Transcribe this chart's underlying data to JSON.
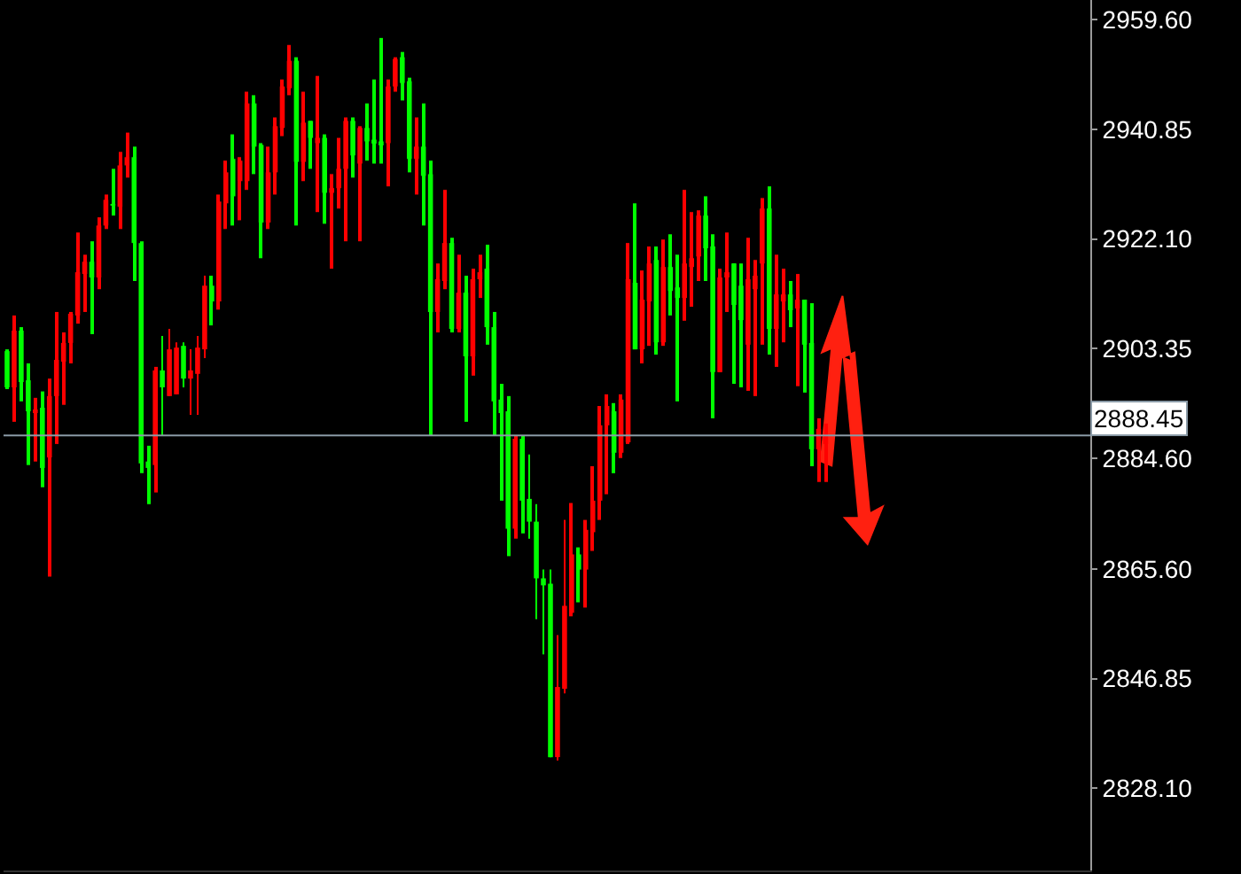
{
  "chart_data": {
    "type": "candlestick",
    "categories": [
      null,
      null,
      null,
      null,
      null,
      null,
      null,
      null,
      null,
      null,
      null,
      null,
      null,
      null,
      null,
      null,
      null,
      null,
      null,
      null,
      null,
      null,
      null,
      null,
      null,
      null,
      null,
      null,
      null,
      null,
      null,
      null,
      null,
      null,
      null,
      null,
      null,
      null,
      null,
      null,
      null,
      null,
      null,
      null,
      null,
      null,
      null,
      null,
      null,
      null,
      null,
      null,
      null,
      null,
      null,
      null,
      null,
      null,
      null,
      null,
      null,
      null,
      null,
      null,
      null,
      null,
      null,
      null,
      null,
      null,
      null,
      null,
      null,
      null,
      null,
      null,
      null,
      null,
      null,
      null,
      null,
      null,
      null,
      null,
      null,
      null,
      null,
      null,
      null,
      null,
      null,
      null,
      null,
      null,
      null,
      null,
      null,
      null,
      null,
      null,
      null,
      null,
      null,
      null,
      null,
      null,
      null,
      null,
      null,
      null,
      null,
      null,
      null,
      null,
      null,
      null,
      null,
      null,
      null,
      null,
      null,
      null,
      null,
      null,
      null,
      null,
      null,
      null,
      null,
      null,
      null,
      null,
      null,
      null,
      null,
      null,
      null,
      null,
      null,
      null,
      null,
      null,
      null,
      null,
      null,
      null,
      null,
      null,
      null,
      null,
      null,
      null,
      null,
      null
    ],
    "series": [
      {
        "colors": [
          "#00ff00",
          "#ff0000",
          "#00ff00",
          "#00ff00",
          "#ff0000",
          "#00ff00",
          "#ff0000",
          "#ff0000",
          "#ff0000",
          "#ff0000",
          "#ff0000",
          "#ff0000",
          "#00ff00",
          "#ff0000",
          "#ff0000",
          "#00ff00",
          "#ff0000",
          "#ff0000",
          "#00ff00",
          "#00ff00",
          "#00ff00",
          "#ff0000",
          "#00ff00",
          "#ff0000",
          "#ff0000",
          "#00ff00",
          "#ff0000",
          "#ff0000",
          "#ff0000",
          "#00ff00",
          "#ff0000",
          "#ff0000",
          "#00ff00",
          "#ff0000",
          "#ff0000",
          "#00ff00",
          "#00ff00",
          "#ff0000",
          "#ff0000",
          "#ff0000",
          "#ff0000",
          "#00ff00",
          "#ff0000",
          "#00ff00",
          "#ff0000",
          "#00ff00",
          "#ff0000",
          "#ff0000",
          "#ff0000",
          "#00ff00",
          "#ff0000",
          "#00ff00",
          "#00ff00",
          "#00ff00",
          "#ff0000",
          "#ff0000",
          "#00ff00",
          "#00ff00",
          "#ff0000",
          "#00ff00",
          "#00ff00",
          "#ff0000",
          "#ff0000",
          "#00ff00",
          "#ff0000",
          "#00ff00",
          "#ff0000",
          "#ff0000",
          "#00ff00",
          "#00ff00",
          "#00ff00",
          "#00ff00",
          "#ff0000",
          "#00ff00",
          "#00ff00",
          "#00ff00",
          "#00ff00",
          "#00ff00",
          "#ff0000",
          "#ff0000",
          "#ff0000",
          "#00ff00",
          "#ff0000",
          "#ff0000",
          "#ff0000",
          "#ff0000",
          "#00ff00",
          "#ff0000",
          "#ff0000",
          "#00ff00",
          "#ff0000",
          "#ff0000",
          "#00ff00",
          "#ff0000",
          "#00ff00",
          "#00ff00",
          "#ff0000",
          "#ff0000",
          "#ff0000",
          "#00ff00",
          "#00ff00",
          "#ff0000",
          "#ff0000",
          "#00ff00",
          "#00ff00",
          "#ff0000",
          "#ff0000",
          "#ff0000",
          "#00ff00",
          "#ff0000",
          "#ff0000",
          "#00ff00",
          "#ff0000",
          "#00ff00",
          "#00ff00",
          "#ff0000",
          "#ff0000",
          null,
          null,
          null,
          null,
          null,
          null,
          null,
          null,
          null,
          null,
          null,
          null,
          null,
          null,
          null,
          null,
          null,
          null,
          null,
          null,
          null,
          null,
          null,
          null,
          null,
          null,
          null,
          null,
          null,
          null,
          null,
          null,
          null,
          null,
          null,
          null,
          null
        ],
        "ohlc": [
          [
            2896.7,
            2903.2,
            2896.4,
            2902.9
          ],
          [
            2906.4,
            2909.0,
            2890.8,
            2896.7
          ],
          [
            2897.6,
            2907.0,
            2894.3,
            2906.4
          ],
          [
            2892.6,
            2900.8,
            2883.4,
            2897.9
          ],
          [
            2892.6,
            2894.9,
            2884.0,
            2892.3
          ],
          [
            2882.9,
            2896.0,
            2879.6,
            2893.2
          ],
          [
            2895.2,
            2898.2,
            2864.3,
            2884.7
          ],
          [
            2901.4,
            2909.6,
            2887.0,
            2895.2
          ],
          [
            2904.3,
            2906.1,
            2893.7,
            2901.1
          ],
          [
            2909.3,
            2909.6,
            2900.8,
            2904.3
          ],
          [
            2916.4,
            2923.2,
            2907.6,
            2909.0
          ],
          [
            2918.2,
            2919.4,
            2909.6,
            2916.1
          ],
          [
            2915.5,
            2921.7,
            2905.8,
            2918.2
          ],
          [
            2924.4,
            2925.8,
            2913.5,
            2915.5
          ],
          [
            2928.8,
            2929.7,
            2923.8,
            2924.4
          ],
          [
            2927.8,
            2934.1,
            2926.1,
            2928.1
          ],
          [
            2934.7,
            2937.0,
            2923.8,
            2927.6
          ],
          [
            2936.1,
            2940.3,
            2932.6,
            2934.7
          ],
          [
            2921.4,
            2937.9,
            2914.9,
            2936.1
          ],
          [
            2883.7,
            2921.7,
            2882.0,
            2921.4
          ],
          [
            2882.9,
            2886.7,
            2876.7,
            2884.0
          ],
          [
            2899.6,
            2900.2,
            2878.7,
            2883.4
          ],
          [
            2896.7,
            2905.5,
            2888.5,
            2899.6
          ],
          [
            2903.2,
            2906.7,
            2895.2,
            2895.2
          ],
          [
            2903.5,
            2904.4,
            2895.5,
            2895.5
          ],
          [
            2898.2,
            2904.4,
            2896.7,
            2903.8
          ],
          [
            2899.6,
            2903.2,
            2892.0,
            2898.2
          ],
          [
            2903.5,
            2905.5,
            2892.0,
            2899.0
          ],
          [
            2914.1,
            2915.8,
            2901.7,
            2903.2
          ],
          [
            2911.4,
            2915.8,
            2907.3,
            2914.1
          ],
          [
            2928.5,
            2929.7,
            2910.0,
            2911.4
          ],
          [
            2933.5,
            2935.5,
            2923.8,
            2928.2
          ],
          [
            2929.4,
            2940.0,
            2924.4,
            2935.8
          ],
          [
            2935.5,
            2936.1,
            2925.3,
            2932.0
          ],
          [
            2945.3,
            2947.3,
            2930.5,
            2932.0
          ],
          [
            2937.9,
            2946.7,
            2933.2,
            2945.3
          ],
          [
            2924.9,
            2938.5,
            2918.8,
            2938.2
          ],
          [
            2933.5,
            2937.9,
            2923.8,
            2924.9
          ],
          [
            2941.4,
            2942.9,
            2929.7,
            2933.5
          ],
          [
            2948.2,
            2949.4,
            2939.7,
            2941.1
          ],
          [
            2952.6,
            2955.3,
            2946.7,
            2947.9
          ],
          [
            2935.3,
            2953.2,
            2924.4,
            2952.6
          ],
          [
            2942.0,
            2947.3,
            2932.0,
            2935.3
          ],
          [
            2939.4,
            2942.3,
            2934.1,
            2942.3
          ],
          [
            2939.4,
            2950.0,
            2926.7,
            2938.5
          ],
          [
            2930.0,
            2940.0,
            2924.7,
            2939.4
          ],
          [
            2930.8,
            2933.2,
            2917.0,
            2930.0
          ],
          [
            2934.1,
            2939.4,
            2927.3,
            2930.8
          ],
          [
            2942.3,
            2942.9,
            2921.7,
            2934.1
          ],
          [
            2936.4,
            2942.9,
            2932.6,
            2942.3
          ],
          [
            2941.1,
            2941.4,
            2921.7,
            2935.0
          ],
          [
            2938.8,
            2945.3,
            2935.5,
            2941.1
          ],
          [
            2938.5,
            2949.4,
            2935.0,
            2939.1
          ],
          [
            2938.2,
            2956.5,
            2935.0,
            2938.8
          ],
          [
            2948.2,
            2949.4,
            2931.1,
            2938.5
          ],
          [
            2952.9,
            2953.2,
            2947.3,
            2948.2
          ],
          [
            2948.8,
            2954.1,
            2945.8,
            2953.2
          ],
          [
            2935.8,
            2949.7,
            2933.5,
            2949.1
          ],
          [
            2937.9,
            2942.9,
            2929.7,
            2935.8
          ],
          [
            2932.9,
            2945.3,
            2924.4,
            2937.9
          ],
          [
            2909.6,
            2935.5,
            2888.5,
            2933.2
          ],
          [
            2915.2,
            2917.9,
            2906.1,
            2909.6
          ],
          [
            2921.4,
            2930.5,
            2913.5,
            2914.9
          ],
          [
            2906.7,
            2922.3,
            2906.1,
            2921.4
          ],
          [
            2912.9,
            2919.4,
            2906.1,
            2906.7
          ],
          [
            2902.0,
            2915.8,
            2890.8,
            2912.9
          ],
          [
            2915.2,
            2917.0,
            2898.7,
            2902.0
          ],
          [
            2916.4,
            2919.4,
            2912.0,
            2915.2
          ],
          [
            2907.0,
            2921.1,
            2904.0,
            2917.0
          ],
          [
            2894.3,
            2909.6,
            2888.5,
            2907.0
          ],
          [
            2892.3,
            2897.3,
            2877.3,
            2894.6
          ],
          [
            2872.5,
            2895.2,
            2867.8,
            2892.6
          ],
          [
            2887.9,
            2888.5,
            2870.8,
            2872.5
          ],
          [
            2877.3,
            2888.5,
            2871.7,
            2887.9
          ],
          [
            2873.7,
            2885.2,
            2870.8,
            2877.6
          ],
          [
            2864.0,
            2876.7,
            2857.0,
            2873.7
          ],
          [
            2862.8,
            2865.5,
            2851.0,
            2864.0
          ],
          [
            2833.4,
            2865.5,
            2833.4,
            2863.1
          ],
          [
            2845.4,
            2854.3,
            2832.8,
            2833.4
          ],
          [
            2859.3,
            2874.0,
            2844.3,
            2845.1
          ],
          [
            2868.1,
            2876.9,
            2857.5,
            2858.1
          ],
          [
            2865.5,
            2869.3,
            2859.9,
            2868.1
          ],
          [
            2872.3,
            2874.0,
            2859.0,
            2865.5
          ],
          [
            2877.3,
            2883.2,
            2868.7,
            2871.9
          ],
          [
            2890.2,
            2893.5,
            2874.0,
            2877.3
          ],
          [
            2893.5,
            2895.5,
            2878.4,
            2890.2
          ],
          [
            2885.5,
            2894.0,
            2882.0,
            2892.6
          ],
          [
            2894.6,
            2895.5,
            2884.6,
            2885.5
          ],
          [
            2915.2,
            2921.4,
            2887.0,
            2887.3
          ],
          [
            2903.2,
            2928.2,
            2903.2,
            2914.6
          ],
          [
            2911.7,
            2916.7,
            2900.8,
            2903.2
          ],
          [
            2917.9,
            2920.8,
            2903.8,
            2911.4
          ],
          [
            2904.4,
            2920.8,
            2902.3,
            2918.5
          ],
          [
            2917.3,
            2922.0,
            2903.8,
            2904.4
          ],
          [
            2913.2,
            2922.9,
            2909.0,
            2917.3
          ],
          [
            2912.0,
            2919.4,
            2894.3,
            2913.8
          ],
          [
            2917.9,
            2930.5,
            2908.1,
            2912.0
          ],
          [
            2918.8,
            2926.7,
            2910.5,
            2917.3
          ],
          [
            2926.1,
            2927.0,
            2914.9,
            2919.1
          ],
          [
            2920.5,
            2929.4,
            2914.9,
            2926.1
          ],
          [
            2899.3,
            2922.9,
            2891.4,
            2920.8
          ],
          [
            2915.5,
            2917.0,
            2899.3,
            2899.3
          ],
          [
            2916.4,
            2923.2,
            2909.6,
            2915.5
          ],
          [
            2910.8,
            2917.9,
            2897.3,
            2917.9
          ],
          [
            2908.2,
            2917.9,
            2896.7,
            2914.1
          ],
          [
            2915.2,
            2922.3,
            2896.1,
            2904.0
          ],
          [
            2915.8,
            2918.5,
            2895.2,
            2913.5
          ],
          [
            2927.3,
            2929.1,
            2904.0,
            2917.9
          ],
          [
            2906.7,
            2931.1,
            2902.3,
            2927.3
          ],
          [
            2912.6,
            2919.4,
            2900.2,
            2906.7
          ],
          [
            2912.6,
            2917.0,
            2904.4,
            2911.4
          ],
          [
            2909.9,
            2914.9,
            2907.0,
            2912.6
          ],
          [
            2911.7,
            2916.1,
            2896.9,
            2910.2
          ],
          [
            2904.0,
            2911.7,
            2895.8,
            2911.7
          ],
          [
            2886.1,
            2911.1,
            2883.2,
            2904.3
          ],
          [
            2889.6,
            2891.4,
            2880.5,
            2886.1
          ],
          [
            2888.5,
            2890.5,
            2880.5,
            2887.0
          ],
          null,
          null,
          null,
          null,
          null,
          null,
          null,
          null,
          null,
          null,
          null,
          null,
          null,
          null,
          null,
          null,
          null,
          null,
          null,
          null,
          null,
          null,
          null,
          null,
          null,
          null,
          null,
          null,
          null,
          null,
          null,
          null,
          null,
          null,
          null,
          null,
          null
        ]
      }
    ],
    "ylim": [
      2814.0,
      2963.0
    ],
    "yticks": [
      {
        "value": 2959.6,
        "label": "2959.60"
      },
      {
        "value": 2940.85,
        "label": "2940.85"
      },
      {
        "value": 2922.1,
        "label": "2922.10"
      },
      {
        "value": 2903.35,
        "label": "2903.35"
      },
      {
        "value": 2884.6,
        "label": "2884.60"
      },
      {
        "value": 2865.6,
        "label": "2865.60"
      },
      {
        "value": 2846.85,
        "label": "2846.85"
      },
      {
        "value": 2828.1,
        "label": "2828.10"
      }
    ],
    "ref_lines": [
      {
        "axis": "y",
        "value": 2888.45,
        "label": "2888.45",
        "color": "#8a9aa6"
      }
    ],
    "tick_labels": "y"
  }
}
